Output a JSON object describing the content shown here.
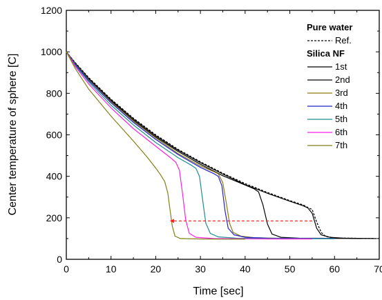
{
  "chart_data": {
    "type": "line",
    "xlabel": "Time [sec]",
    "ylabel": "Center temperature of sphere [C]",
    "xlim": [
      0,
      70
    ],
    "ylim": [
      0,
      1200
    ],
    "x_ticks": [
      "0",
      "10",
      "20",
      "30",
      "40",
      "50",
      "60",
      "70"
    ],
    "y_ticks": [
      "0",
      "200",
      "400",
      "600",
      "800",
      "1000",
      "1200"
    ],
    "grid": false,
    "legend": {
      "placement": "top-right",
      "groups": [
        {
          "title": "Pure water",
          "entries": [
            "Ref."
          ]
        },
        {
          "title": "Silica NF",
          "entries": [
            "1st",
            "2nd",
            "3rd",
            "4th",
            "5th",
            "6th",
            "7th"
          ]
        }
      ]
    },
    "series": [
      {
        "name": "Ref.",
        "color": "#000000",
        "dash": true,
        "points": [
          [
            0,
            1000
          ],
          [
            2,
            948
          ],
          [
            5,
            876
          ],
          [
            10,
            772
          ],
          [
            15,
            680
          ],
          [
            20,
            600
          ],
          [
            25,
            530
          ],
          [
            30,
            470
          ],
          [
            35,
            415
          ],
          [
            40,
            365
          ],
          [
            45,
            322
          ],
          [
            50,
            283
          ],
          [
            53,
            262
          ],
          [
            54,
            250
          ],
          [
            55,
            240
          ],
          [
            56,
            180
          ],
          [
            57,
            130
          ],
          [
            58,
            110
          ],
          [
            60,
            103
          ],
          [
            65,
            101
          ],
          [
            70,
            100
          ]
        ]
      },
      {
        "name": "1st",
        "color": "#000000",
        "points": [
          [
            0,
            1000
          ],
          [
            2,
            945
          ],
          [
            5,
            872
          ],
          [
            10,
            768
          ],
          [
            15,
            676
          ],
          [
            20,
            596
          ],
          [
            25,
            526
          ],
          [
            30,
            466
          ],
          [
            35,
            411
          ],
          [
            40,
            360
          ],
          [
            45,
            318
          ],
          [
            50,
            280
          ],
          [
            53,
            258
          ],
          [
            54,
            248
          ],
          [
            55,
            222
          ],
          [
            56,
            150
          ],
          [
            57,
            118
          ],
          [
            59,
            106
          ],
          [
            62,
            102
          ],
          [
            65,
            101
          ],
          [
            69,
            100
          ]
        ]
      },
      {
        "name": "2nd",
        "color": "#000000",
        "points": [
          [
            0,
            1000
          ],
          [
            2,
            943
          ],
          [
            5,
            868
          ],
          [
            10,
            763
          ],
          [
            15,
            670
          ],
          [
            20,
            590
          ],
          [
            25,
            520
          ],
          [
            30,
            458
          ],
          [
            35,
            403
          ],
          [
            40,
            358
          ],
          [
            42,
            340
          ],
          [
            43,
            325
          ],
          [
            44,
            262
          ],
          [
            45,
            170
          ],
          [
            46,
            122
          ],
          [
            48,
            106
          ],
          [
            52,
            102
          ],
          [
            60,
            101
          ],
          [
            66,
            100
          ]
        ]
      },
      {
        "name": "3rd",
        "color": "#8c7a12",
        "points": [
          [
            0,
            1000
          ],
          [
            2,
            942
          ],
          [
            5,
            866
          ],
          [
            10,
            760
          ],
          [
            15,
            666
          ],
          [
            20,
            585
          ],
          [
            25,
            510
          ],
          [
            30,
            450
          ],
          [
            33,
            422
          ],
          [
            34,
            412
          ],
          [
            35,
            370
          ],
          [
            35.8,
            270
          ],
          [
            36.5,
            175
          ],
          [
            37.3,
            130
          ],
          [
            39,
            112
          ],
          [
            42,
            104
          ],
          [
            48,
            101
          ],
          [
            55,
            100
          ]
        ]
      },
      {
        "name": "4th",
        "color": "#1f1fc8",
        "points": [
          [
            0,
            1000
          ],
          [
            2,
            940
          ],
          [
            5,
            862
          ],
          [
            10,
            755
          ],
          [
            15,
            660
          ],
          [
            20,
            578
          ],
          [
            25,
            505
          ],
          [
            30,
            443
          ],
          [
            33,
            413
          ],
          [
            34,
            400
          ],
          [
            34.8,
            355
          ],
          [
            35.5,
            235
          ],
          [
            36.2,
            150
          ],
          [
            37.5,
            118
          ],
          [
            40,
            106
          ],
          [
            45,
            102
          ],
          [
            60,
            100
          ]
        ]
      },
      {
        "name": "5th",
        "color": "#1f8c8c",
        "points": [
          [
            0,
            1000
          ],
          [
            2,
            935
          ],
          [
            5,
            855
          ],
          [
            10,
            743
          ],
          [
            15,
            648
          ],
          [
            20,
            563
          ],
          [
            25,
            490
          ],
          [
            28,
            453
          ],
          [
            29,
            438
          ],
          [
            29.8,
            400
          ],
          [
            30.5,
            285
          ],
          [
            31.2,
            175
          ],
          [
            32.2,
            125
          ],
          [
            34,
            108
          ],
          [
            38,
            102
          ],
          [
            45,
            100
          ],
          [
            60,
            99
          ]
        ]
      },
      {
        "name": "6th",
        "color": "#ff1fe0",
        "points": [
          [
            0,
            1000
          ],
          [
            2,
            930
          ],
          [
            5,
            845
          ],
          [
            10,
            730
          ],
          [
            15,
            630
          ],
          [
            20,
            545
          ],
          [
            23,
            495
          ],
          [
            24.5,
            468
          ],
          [
            25.3,
            430
          ],
          [
            26,
            315
          ],
          [
            26.7,
            190
          ],
          [
            27.5,
            125
          ],
          [
            29,
            106
          ],
          [
            33,
            100
          ],
          [
            45,
            98
          ],
          [
            55,
            98
          ]
        ]
      },
      {
        "name": "7th",
        "color": "#808014",
        "points": [
          [
            0,
            1000
          ],
          [
            2,
            920
          ],
          [
            5,
            820
          ],
          [
            10,
            690
          ],
          [
            15,
            570
          ],
          [
            18,
            495
          ],
          [
            20,
            440
          ],
          [
            21,
            410
          ],
          [
            22,
            375
          ],
          [
            22.7,
            320
          ],
          [
            23.2,
            240
          ],
          [
            23.7,
            160
          ],
          [
            24.3,
            112
          ],
          [
            25.5,
            100
          ],
          [
            30,
            98
          ],
          [
            35,
            97
          ],
          [
            40,
            97
          ]
        ]
      }
    ],
    "annotation": {
      "type": "dashed-arrow",
      "color": "#ff2020",
      "from": [
        55,
        185
      ],
      "to": [
        24,
        185
      ]
    }
  }
}
